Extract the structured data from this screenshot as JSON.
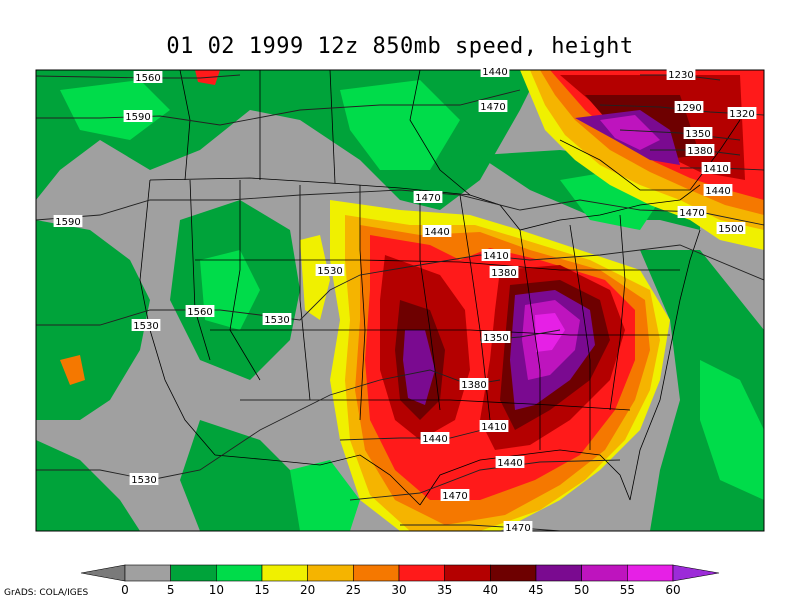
{
  "title": "01 02 1999 12z 850mb speed, height",
  "credit": "GrADS: COLA/IGES",
  "colorbar": {
    "ticks": [
      "0",
      "5",
      "10",
      "15",
      "20",
      "25",
      "30",
      "35",
      "40",
      "45",
      "50",
      "55",
      "60"
    ],
    "colors": [
      "#7a7a7a",
      "#a0a0a0",
      "#00a33a",
      "#00dc4a",
      "#f0f000",
      "#f5b400",
      "#f57800",
      "#ff1a1a",
      "#b40000",
      "#6e0000",
      "#7a0a90",
      "#be14be",
      "#e620e6"
    ],
    "arrow_low_color": "#7a7a7a",
    "arrow_high_color": "#9c2bd8"
  },
  "height_labels": [
    "1560",
    "1440",
    "1230",
    "1590",
    "1470",
    "1290",
    "1320",
    "1350",
    "1380",
    "1410",
    "1440",
    "1470",
    "1500",
    "1590",
    "1470",
    "1440",
    "1410",
    "1380",
    "1530",
    "1350",
    "1530",
    "1560",
    "1530",
    "1380",
    "1410",
    "1440",
    "1440",
    "1470",
    "1530",
    "1470"
  ]
}
